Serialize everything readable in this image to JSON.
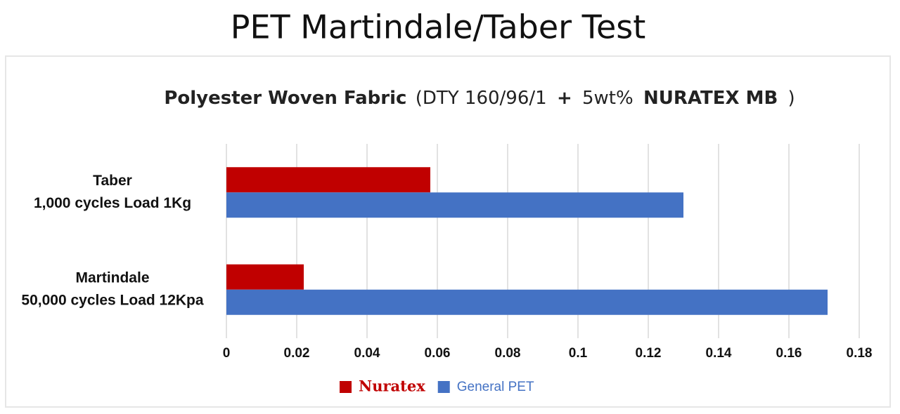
{
  "chart_data": {
    "type": "bar",
    "orientation": "horizontal",
    "title": "PET Martindale/Taber Test",
    "subtitle_parts": [
      "Polyester Woven Fabric",
      "(DTY 160/96/1",
      "+",
      "5wt%",
      "NURATEX MB",
      ")"
    ],
    "categories": [
      [
        "Taber",
        "1,000 cycles Load 1Kg"
      ],
      [
        "Martindale",
        "50,000 cycles Load 12Kpa"
      ]
    ],
    "series": [
      {
        "name": "Nuratex",
        "color": "#c00000",
        "values": [
          0.058,
          0.022
        ]
      },
      {
        "name": "General PET",
        "color": "#4472c4",
        "values": [
          0.13,
          0.171
        ]
      }
    ],
    "xlim": [
      0,
      0.18
    ],
    "xticks": [
      0,
      0.02,
      0.04,
      0.06,
      0.08,
      0.1,
      0.12,
      0.14,
      0.16,
      0.18
    ],
    "grid": true,
    "legend": "bottom"
  }
}
